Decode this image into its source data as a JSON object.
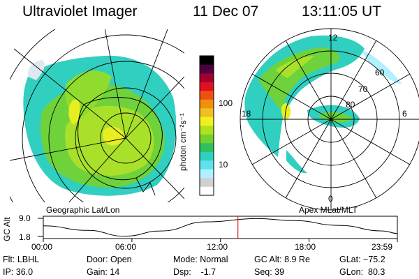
{
  "header": {
    "instrument": "Ultraviolet Imager",
    "date": "11 Dec 07",
    "time": "13:11:05 UT"
  },
  "panels": {
    "left_label": "Geographic Lat/Lon",
    "right_label": "Apex MLat/MLT"
  },
  "colorbar": {
    "label": "photon cm⁻²s⁻¹",
    "ticks": [
      "100",
      "10"
    ],
    "colors": [
      "#ffffff",
      "#d0d0d0",
      "#b0f0ff",
      "#60e0f0",
      "#30d0c0",
      "#30c060",
      "#70d030",
      "#b0e020",
      "#f0f020",
      "#f0c020",
      "#f09010",
      "#f05010",
      "#e01020",
      "#a00030",
      "#500040",
      "#000000"
    ]
  },
  "polar_right": {
    "mlt_labels": [
      "12",
      "18",
      "6",
      "0"
    ],
    "lat_labels": [
      "60",
      "70",
      "80"
    ]
  },
  "chart_data": {
    "type": "line",
    "title": "",
    "ylabel": "GC Alt",
    "yticks": [
      "9.0",
      "1.8"
    ],
    "ylim": [
      1.8,
      9.0
    ],
    "xticks": [
      "00:00",
      "06:00",
      "12:00",
      "18:00",
      "23:59"
    ],
    "x_hours": [
      0,
      3,
      5.5,
      8,
      11,
      14.5,
      17,
      20,
      23,
      23.98
    ],
    "y_re": [
      6.0,
      4.2,
      1.9,
      4.0,
      7.6,
      8.9,
      8.1,
      6.2,
      4.0,
      3.0
    ],
    "current_time_hours": 13.18,
    "marker_color": "#e02020"
  },
  "footer": {
    "filter": "Flt: LBHL",
    "ip": "IP: 36.0",
    "door": "Door: Open",
    "gain": "Gain: 14",
    "mode": "Mode: Normal",
    "dsp": "Dsp:    -1.7",
    "gcalt": "GC Alt: 8.9 Re",
    "seq": "Seq: 39",
    "glat": "GLat: −75.2",
    "glon": "GLon:  80.3"
  }
}
